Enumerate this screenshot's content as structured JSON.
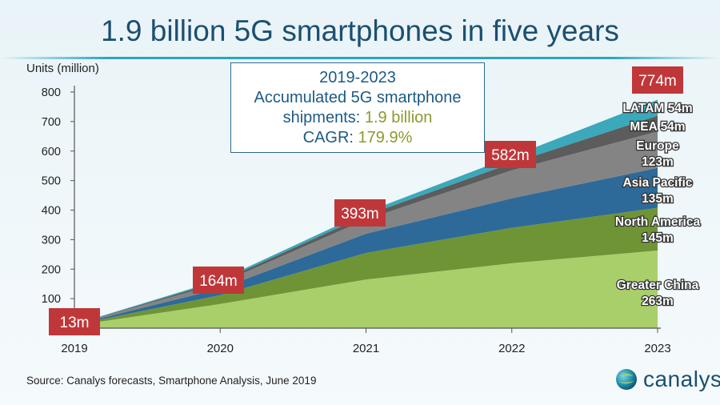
{
  "title": "1.9 billion 5G smartphones in five years",
  "source": "Source:  Canalys forecasts, Smartphone Analysis, June 2019",
  "brand": "canalys",
  "callout": {
    "line1": "2019-2023",
    "line2": "Accumulated 5G smartphone",
    "line3_prefix": "shipments: ",
    "line3_value": "1.9 billion",
    "line4_prefix": "CAGR: ",
    "line4_value": "179.9%"
  },
  "chart_data": {
    "type": "area",
    "stacked": true,
    "ylabel": "Units (million)",
    "ylim": [
      0,
      800
    ],
    "yticks": [
      100,
      200,
      300,
      400,
      500,
      600,
      700,
      800
    ],
    "categories": [
      "2019",
      "2020",
      "2021",
      "2022",
      "2023"
    ],
    "totals": [
      13,
      164,
      393,
      582,
      774
    ],
    "total_labels": [
      "13m",
      "164m",
      "393m",
      "582m",
      "774m"
    ],
    "series": [
      {
        "name": "Greater China",
        "label_line1": "Greater China",
        "label_line2": "263m",
        "values": [
          9,
          82,
          165,
          220,
          263
        ],
        "color": "#a9cf6a"
      },
      {
        "name": "North America",
        "label_line1": "North America",
        "label_line2": "145m",
        "values": [
          2,
          30,
          90,
          120,
          145
        ],
        "color": "#6f9436"
      },
      {
        "name": "Asia Pacific",
        "label_line1": "Asia Pacific",
        "label_line2": "135m",
        "values": [
          1,
          22,
          65,
          100,
          135
        ],
        "color": "#2d6a9a"
      },
      {
        "name": "Europe",
        "label_line1": "Europe",
        "label_line2": "123m",
        "values": [
          1,
          18,
          48,
          95,
          123
        ],
        "color": "#848484"
      },
      {
        "name": "MEA",
        "label_line1": "MEA 54m",
        "label_line2": "",
        "values": [
          0,
          7,
          15,
          24,
          54
        ],
        "color": "#5c5c5c"
      },
      {
        "name": "LATAM",
        "label_line1": "LATAM 54m",
        "label_line2": "",
        "values": [
          0,
          5,
          10,
          23,
          54
        ],
        "color": "#3ba8bb"
      }
    ],
    "colors": {
      "total_label_bg": "#c0373a",
      "axis": "#555555",
      "title": "#1c4f70"
    }
  }
}
